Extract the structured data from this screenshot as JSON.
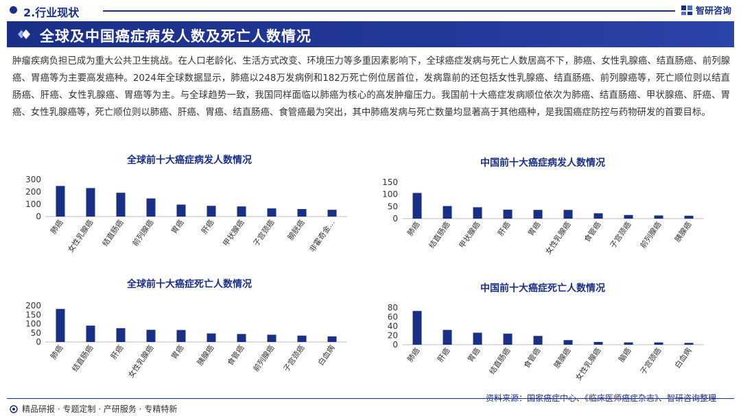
{
  "header": {
    "section": "2.行业现状",
    "logo_text": "智研咨询",
    "title": "全球及中国癌症病发人数及死亡人数情况"
  },
  "paragraph": "肿瘤疾病负担已成为重大公共卫生挑战。在人口老龄化、生活方式改变、环境压力等多重因素影响下，全球癌症发病与死亡人数居高不下，肺癌、女性乳腺癌、结直肠癌、前列腺癌、胃癌等为主要高发癌种。2024年全球数据显示，肺癌以248万发病例和182万死亡例位居首位，发病靠前的还包括女性乳腺癌、结直肠癌、前列腺癌等，死亡顺位则以结直肠癌、肝癌、女性乳腺癌、胃癌等为主。与全球趋势一致，我国同样面临以肺癌为核心的高发肿瘤压力。我国前十大癌症发病顺位依次为肺癌、结直肠癌、甲状腺癌、肝癌、胃癌、女性乳腺癌等，死亡顺位则以肺癌、肝癌、胃癌、结直肠癌、食管癌最为突出，其中肺癌发病与死亡数量均显著高于其他癌种，是我国癌症防控与药物研发的首要目标。",
  "chart_data": [
    {
      "type": "bar",
      "title": "全球前十大癌症病发人数情况",
      "categories": [
        "肺癌",
        "女性乳腺癌",
        "结直肠癌",
        "前列腺癌",
        "胃癌",
        "肝癌",
        "甲状腺癌",
        "子宫颈癌",
        "膀胱癌",
        "非霍奇金..."
      ],
      "values": [
        248,
        231,
        193,
        147,
        97,
        87,
        82,
        66,
        61,
        55
      ],
      "ylim": [
        0,
        300
      ],
      "yticks": [
        "0",
        "100",
        "200",
        "300"
      ],
      "grid": false
    },
    {
      "type": "bar",
      "title": "中国前十大癌症病发人数情况",
      "categories": [
        "肺癌",
        "结直肠癌",
        "甲状腺癌",
        "肝癌",
        "胃癌",
        "女性乳腺癌",
        "食管癌",
        "子宫颈癌",
        "前列腺癌",
        "胰腺癌"
      ],
      "values": [
        106,
        52,
        47,
        37,
        36,
        36,
        22,
        15,
        13,
        12
      ],
      "ylim": [
        0,
        150
      ],
      "yticks": [
        "0",
        "50",
        "100",
        "150"
      ],
      "grid": false
    },
    {
      "type": "bar",
      "title": "全球前十大癌症死亡人数情况",
      "categories": [
        "肺癌",
        "结直肠癌",
        "肝癌",
        "女性乳腺癌",
        "胃癌",
        "胰腺癌",
        "食管癌",
        "前列腺癌",
        "子宫颈癌",
        "白血病"
      ],
      "values": [
        182,
        90,
        76,
        67,
        66,
        47,
        44,
        40,
        35,
        31
      ],
      "ylim": [
        0,
        200
      ],
      "yticks": [
        "0",
        "50",
        "100",
        "150",
        "200"
      ],
      "grid": false
    },
    {
      "type": "bar",
      "title": "中国前十大癌症死亡人数情况",
      "categories": [
        "肺癌",
        "肝癌",
        "胃癌",
        "结直肠癌",
        "食管癌",
        "胰腺癌",
        "女性乳腺癌",
        "脑癌",
        "子宫颈癌",
        "白血病"
      ],
      "values": [
        73,
        32,
        26,
        24,
        19,
        10,
        6,
        5,
        5,
        4
      ],
      "ylim": [
        0,
        80
      ],
      "yticks": [
        "0",
        "20",
        "40",
        "60",
        "80"
      ],
      "grid": false
    }
  ],
  "footer": {
    "tagline": "精品研报 · 专题定制 · 产研服务 · 专精特新",
    "source": "资料来源：国家癌症中心、《临床医师癌症杂志》、智研咨询整理"
  },
  "colors": {
    "brand": "#1a2f86",
    "bar": "#1a2f86"
  }
}
